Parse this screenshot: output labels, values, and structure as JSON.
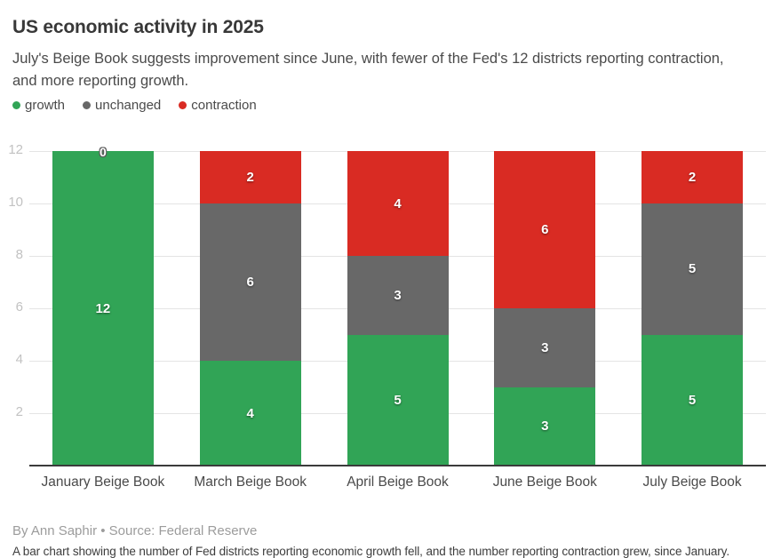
{
  "header": {
    "title": "US economic activity in 2025",
    "subtitle": "July's Beige Book suggests improvement since June, with fewer of the Fed's 12 districts reporting contraction, and more reporting growth."
  },
  "legend": {
    "items": [
      {
        "label": "growth",
        "color": "#31a456"
      },
      {
        "label": "unchanged",
        "color": "#686868"
      },
      {
        "label": "contraction",
        "color": "#d92b23"
      }
    ]
  },
  "chart_data": {
    "type": "bar",
    "variant": "stacked",
    "title": "US economic activity in 2025",
    "categories": [
      "January Beige Book",
      "March Beige Book",
      "April Beige Book",
      "June Beige Book",
      "July Beige Book"
    ],
    "series": [
      {
        "name": "growth",
        "color": "#31a456",
        "values": [
          12,
          4,
          5,
          3,
          5
        ],
        "labels": [
          "12",
          "4",
          "5",
          "3",
          "5"
        ]
      },
      {
        "name": "unchanged",
        "color": "#686868",
        "values": [
          0,
          6,
          3,
          3,
          5
        ],
        "labels": [
          "0",
          "6",
          "3",
          "3",
          "5"
        ]
      },
      {
        "name": "contraction",
        "color": "#d92b23",
        "values": [
          0,
          2,
          4,
          6,
          2
        ],
        "labels": [
          "",
          "2",
          "4",
          "6",
          "2"
        ]
      }
    ],
    "stack_order_bottom_to_top": [
      "growth",
      "unchanged",
      "contraction"
    ],
    "y_ticks": [
      2,
      4,
      6,
      8,
      10,
      12
    ],
    "ylim": [
      0,
      12
    ],
    "grid": "horizontal",
    "legend_position": "top",
    "xlabel": "",
    "ylabel": ""
  },
  "footer": {
    "byline": "By Ann Saphir • Source: Federal Reserve",
    "alt_text": "A bar chart showing the number of Fed districts reporting economic growth fell, and the number reporting contraction grew, since January."
  }
}
